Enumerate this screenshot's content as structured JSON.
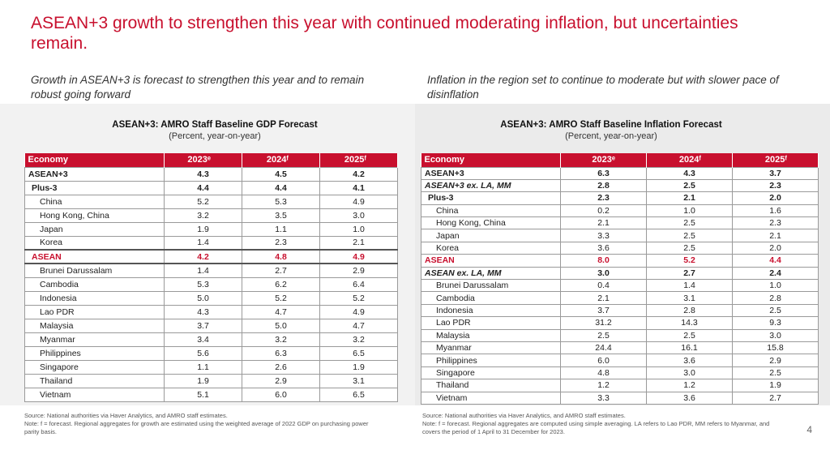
{
  "title": "ASEAN+3 growth to strengthen this year with continued moderating inflation, but uncertainties remain.",
  "left": {
    "subtitle": "Growth in ASEAN+3 is forecast to strengthen this year and to remain robust going forward",
    "table_title": "ASEAN+3: AMRO Staff Baseline GDP Forecast",
    "table_subtitle": "(Percent, year-on-year)",
    "headers": [
      "Economy",
      "2023ᵉ",
      "2024ᶠ",
      "2025ᶠ"
    ],
    "rows": [
      {
        "name": "ASEAN+3",
        "v": [
          "4.3",
          "4.5",
          "4.2"
        ]
      },
      {
        "name": "Plus-3",
        "v": [
          "4.4",
          "4.4",
          "4.1"
        ]
      },
      {
        "name": "China",
        "v": [
          "5.2",
          "5.3",
          "4.9"
        ]
      },
      {
        "name": "Hong Kong, China",
        "v": [
          "3.2",
          "3.5",
          "3.0"
        ]
      },
      {
        "name": "Japan",
        "v": [
          "1.9",
          "1.1",
          "1.0"
        ]
      },
      {
        "name": "Korea",
        "v": [
          "1.4",
          "2.3",
          "2.1"
        ]
      },
      {
        "name": "ASEAN",
        "v": [
          "4.2",
          "4.8",
          "4.9"
        ]
      },
      {
        "name": "Brunei Darussalam",
        "v": [
          "1.4",
          "2.7",
          "2.9"
        ]
      },
      {
        "name": "Cambodia",
        "v": [
          "5.3",
          "6.2",
          "6.4"
        ]
      },
      {
        "name": "Indonesia",
        "v": [
          "5.0",
          "5.2",
          "5.2"
        ]
      },
      {
        "name": "Lao PDR",
        "v": [
          "4.3",
          "4.7",
          "4.9"
        ]
      },
      {
        "name": "Malaysia",
        "v": [
          "3.7",
          "5.0",
          "4.7"
        ]
      },
      {
        "name": "Myanmar",
        "v": [
          "3.4",
          "3.2",
          "3.2"
        ]
      },
      {
        "name": "Philippines",
        "v": [
          "5.6",
          "6.3",
          "6.5"
        ]
      },
      {
        "name": "Singapore",
        "v": [
          "1.1",
          "2.6",
          "1.9"
        ]
      },
      {
        "name": "Thailand",
        "v": [
          "1.9",
          "2.9",
          "3.1"
        ]
      },
      {
        "name": "Vietnam",
        "v": [
          "5.1",
          "6.0",
          "6.5"
        ]
      }
    ],
    "source": "Source: National authorities via Haver Analytics, and AMRO staff estimates.",
    "note": "Note: f = forecast. Regional aggregates for growth are estimated using the weighted average of 2022 GDP on purchasing power parity basis."
  },
  "right": {
    "subtitle": "Inflation in the region set to continue to moderate but with slower pace of disinflation",
    "table_title": "ASEAN+3: AMRO Staff Baseline Inflation Forecast",
    "table_subtitle": "(Percent, year-on-year)",
    "headers": [
      "Economy",
      "2023ᵉ",
      "2024ᶠ",
      "2025ᶠ"
    ],
    "rows": [
      {
        "name": "ASEAN+3",
        "v": [
          "6.3",
          "4.3",
          "3.7"
        ]
      },
      {
        "name": "ASEAN+3 ex. LA, MM",
        "v": [
          "2.8",
          "2.5",
          "2.3"
        ]
      },
      {
        "name": "Plus-3",
        "v": [
          "2.3",
          "2.1",
          "2.0"
        ]
      },
      {
        "name": "China",
        "v": [
          "0.2",
          "1.0",
          "1.6"
        ]
      },
      {
        "name": "Hong Kong, China",
        "v": [
          "2.1",
          "2.5",
          "2.3"
        ]
      },
      {
        "name": "Japan",
        "v": [
          "3.3",
          "2.5",
          "2.1"
        ]
      },
      {
        "name": "Korea",
        "v": [
          "3.6",
          "2.5",
          "2.0"
        ]
      },
      {
        "name": "ASEAN",
        "v": [
          "8.0",
          "5.2",
          "4.4"
        ]
      },
      {
        "name": "ASEAN ex. LA, MM",
        "v": [
          "3.0",
          "2.7",
          "2.4"
        ]
      },
      {
        "name": "Brunei Darussalam",
        "v": [
          "0.4",
          "1.4",
          "1.0"
        ]
      },
      {
        "name": "Cambodia",
        "v": [
          "2.1",
          "3.1",
          "2.8"
        ]
      },
      {
        "name": "Indonesia",
        "v": [
          "3.7",
          "2.8",
          "2.5"
        ]
      },
      {
        "name": "Lao PDR",
        "v": [
          "31.2",
          "14.3",
          "9.3"
        ]
      },
      {
        "name": "Malaysia",
        "v": [
          "2.5",
          "2.5",
          "3.0"
        ]
      },
      {
        "name": "Myanmar",
        "v": [
          "24.4",
          "16.1",
          "15.8"
        ]
      },
      {
        "name": "Philippines",
        "v": [
          "6.0",
          "3.6",
          "2.9"
        ]
      },
      {
        "name": "Singapore",
        "v": [
          "4.8",
          "3.0",
          "2.5"
        ]
      },
      {
        "name": "Thailand",
        "v": [
          "1.2",
          "1.2",
          "1.9"
        ]
      },
      {
        "name": "Vietnam",
        "v": [
          "3.3",
          "3.6",
          "2.7"
        ]
      }
    ],
    "source": "Source: National authorities via Haver Analytics, and AMRO staff estimates.",
    "note": "Note: f = forecast. Regional aggregates are computed using simple averaging. LA refers to Lao PDR, MM refers to Myanmar, and covers the period of 1 April to 31 December for 2023."
  },
  "page_number": "4"
}
